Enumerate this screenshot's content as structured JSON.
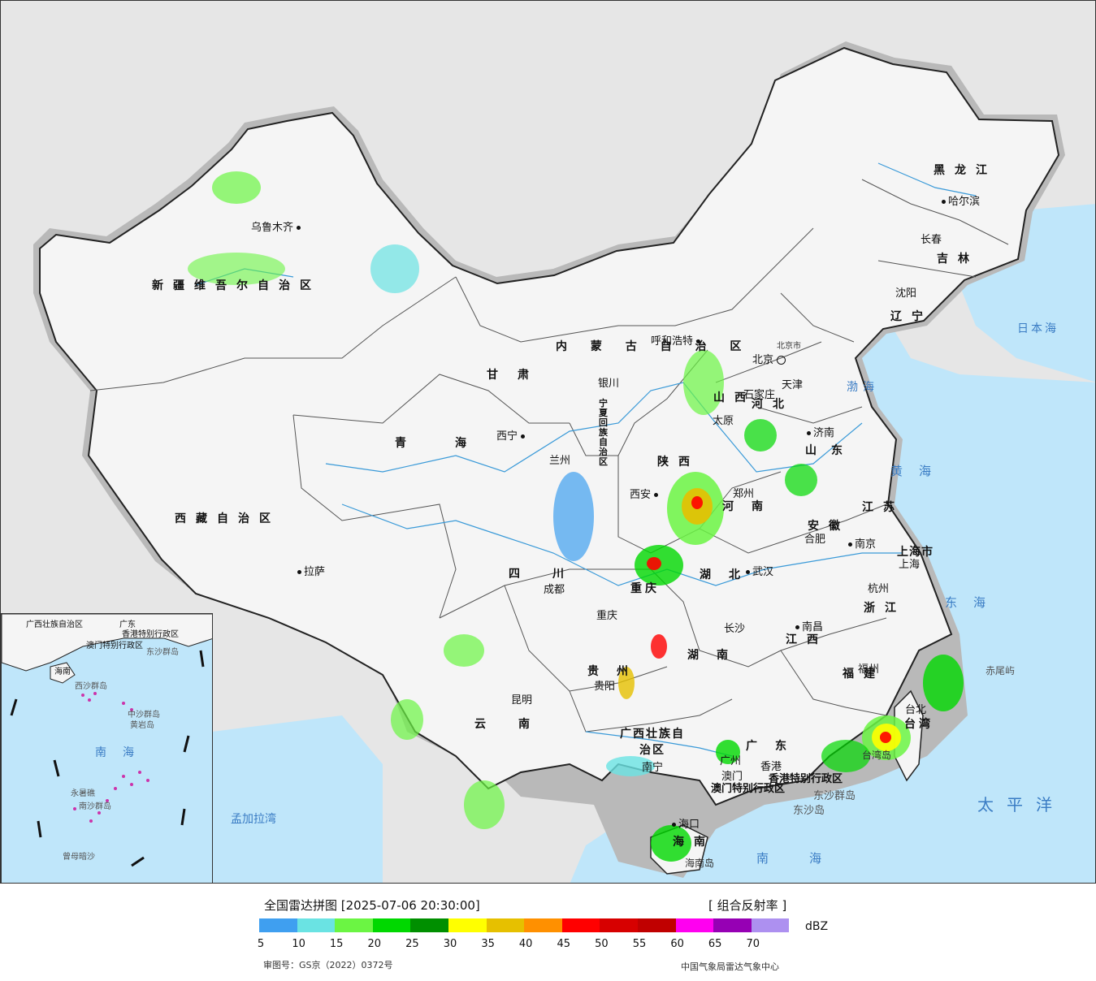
{
  "map": {
    "provinces": [
      {
        "name": "新疆维吾尔自治区"
      },
      {
        "name": "西藏自治区"
      },
      {
        "name": "青海"
      },
      {
        "name": "甘肃"
      },
      {
        "name": "内蒙古自治区"
      },
      {
        "name": "黑龙江"
      },
      {
        "name": "吉林"
      },
      {
        "name": "辽宁"
      },
      {
        "name": "河北"
      },
      {
        "name": "山西"
      },
      {
        "name": "陕西"
      },
      {
        "name": "河南"
      },
      {
        "name": "山东"
      },
      {
        "name": "江苏"
      },
      {
        "name": "安徽"
      },
      {
        "name": "浙江"
      },
      {
        "name": "江西"
      },
      {
        "name": "福建"
      },
      {
        "name": "湖北"
      },
      {
        "name": "湖南"
      },
      {
        "name": "四川"
      },
      {
        "name": "贵州"
      },
      {
        "name": "云南"
      },
      {
        "name": "广西壮族自治区"
      },
      {
        "name": "广东"
      },
      {
        "name": "海南"
      },
      {
        "name": "台湾"
      },
      {
        "name": "重庆"
      },
      {
        "name": "宁夏回族自治区"
      }
    ],
    "cities": [
      {
        "name": "乌鲁木齐"
      },
      {
        "name": "拉萨"
      },
      {
        "name": "西宁"
      },
      {
        "name": "兰州"
      },
      {
        "name": "银川"
      },
      {
        "name": "呼和浩特"
      },
      {
        "name": "北京"
      },
      {
        "name": "天津"
      },
      {
        "name": "石家庄"
      },
      {
        "name": "太原"
      },
      {
        "name": "济南"
      },
      {
        "name": "西安"
      },
      {
        "name": "郑州"
      },
      {
        "name": "合肥"
      },
      {
        "name": "南京"
      },
      {
        "name": "上海"
      },
      {
        "name": "杭州"
      },
      {
        "name": "武汉"
      },
      {
        "name": "成都"
      },
      {
        "name": "重庆"
      },
      {
        "name": "长沙"
      },
      {
        "name": "南昌"
      },
      {
        "name": "福州"
      },
      {
        "name": "台北"
      },
      {
        "name": "贵阳"
      },
      {
        "name": "昆明"
      },
      {
        "name": "南宁"
      },
      {
        "name": "广州"
      },
      {
        "name": "香港"
      },
      {
        "name": "澳门"
      },
      {
        "name": "海口"
      },
      {
        "name": "哈尔滨"
      },
      {
        "name": "长春"
      },
      {
        "name": "沈阳"
      }
    ],
    "seas": {
      "bohai": "渤海",
      "huanghai": "黄海",
      "donghai": "东海",
      "nanhai": "南海",
      "taipingyang": "太平洋",
      "ribenhai": "日本海",
      "mengjialawan": "孟加拉湾"
    },
    "other_labels": {
      "shanghai_city": "上海市",
      "hongkong_sar": "香港特别行政区",
      "macau_sar": "澳门特别行政区",
      "dongsha_islands": "东沙群岛",
      "dongsha_island": "东沙岛",
      "chiwei_islet": "赤尾屿",
      "hainan_island": "海南岛",
      "taiwan_island": "台湾岛",
      "beijing_city": "北京市"
    }
  },
  "inset": {
    "labels": {
      "guangxi": "广西壮族自治区",
      "guangdong": "广东",
      "hainan": "海南",
      "macau_sar": "澳门特别行政区",
      "hongkong_sar": "香港特别行政区",
      "dongsha": "东沙群岛",
      "xisha": "西沙群岛",
      "zhongsha": "中沙群岛",
      "huangyan": "黄岩岛",
      "nansha": "南沙群岛",
      "yongshu": "永暑礁",
      "zengmu": "曾母暗沙",
      "nanhai": "南海"
    }
  },
  "legend": {
    "title": "全国雷达拼图 [2025-07-06 20:30:00]",
    "product": "[ 组合反射率 ]",
    "unit": "dBZ",
    "colors": [
      "#3f9ff0",
      "#6ae3e3",
      "#6bf543",
      "#00d800",
      "#008f00",
      "#ffff00",
      "#e6c000",
      "#ff9000",
      "#ff0000",
      "#d70000",
      "#c00000",
      "#ff00f0",
      "#9600b4",
      "#ad90f0"
    ],
    "ticks": [
      "5",
      "10",
      "15",
      "20",
      "25",
      "30",
      "35",
      "40",
      "45",
      "50",
      "55",
      "60",
      "65",
      "70"
    ],
    "approval": "审图号：GS京（2022）0372号",
    "organization": "中国气象局雷达气象中心"
  }
}
